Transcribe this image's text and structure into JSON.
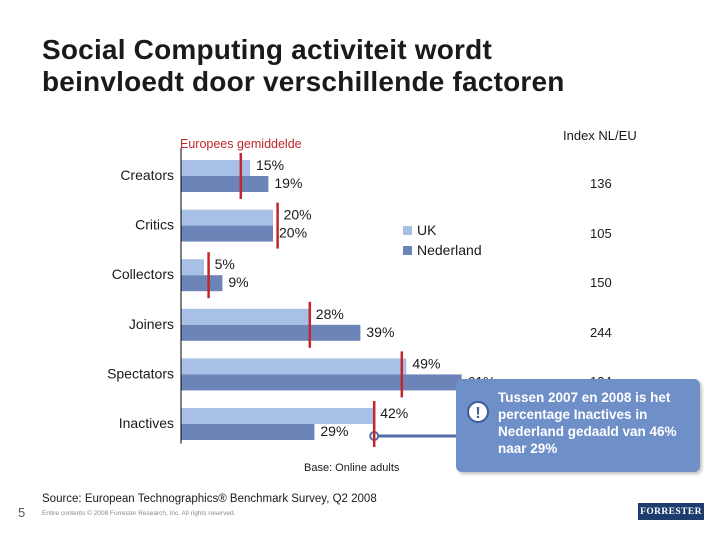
{
  "slide": {
    "title_line1": "Social Computing activiteit wordt",
    "title_line2": "beinvloedt door verschillende factoren",
    "number": "5"
  },
  "footer": {
    "base": "Base: Online adults",
    "source": "Source: European Technographics® Benchmark Survey, Q2 2008",
    "copyright": "Entire contents © 2008 Forrester Research, Inc. All rights reserved.",
    "logo_text": "FORRESTER"
  },
  "callout": {
    "text": "Tussen 2007 en 2008 is het percentage Inactives in Nederland gedaald van 46% naar 29%",
    "icon": "exclamation-icon"
  },
  "colors": {
    "uk": "#a9c0e6",
    "nederland": "#6d84b8",
    "marker": "#c1272d",
    "callout": "#6f8fc9"
  },
  "chart_data": {
    "type": "bar",
    "orientation": "horizontal",
    "reference_label": "Europees gemiddelde",
    "categories": [
      "Creators",
      "Critics",
      "Collectors",
      "Joiners",
      "Spectators",
      "Inactives"
    ],
    "series": [
      {
        "name": "UK",
        "values": [
          15,
          20,
          5,
          28,
          49,
          42
        ],
        "labels": [
          "15%",
          "20%",
          "5%",
          "28%",
          "49%",
          "42%"
        ]
      },
      {
        "name": "Nederland",
        "values": [
          19,
          20,
          9,
          39,
          61,
          29
        ],
        "labels": [
          "19%",
          "20%",
          "9%",
          "39%",
          "61%",
          "29%"
        ]
      }
    ],
    "european_average": [
      13,
      21,
      6,
      28,
      48,
      42
    ],
    "index_title": "Index NL/EU",
    "index_values": [
      "136",
      "105",
      "150",
      "244",
      "134",
      ""
    ],
    "legend": [
      "UK",
      "Nederland"
    ],
    "legend_position": "center-right",
    "grid": false
  }
}
